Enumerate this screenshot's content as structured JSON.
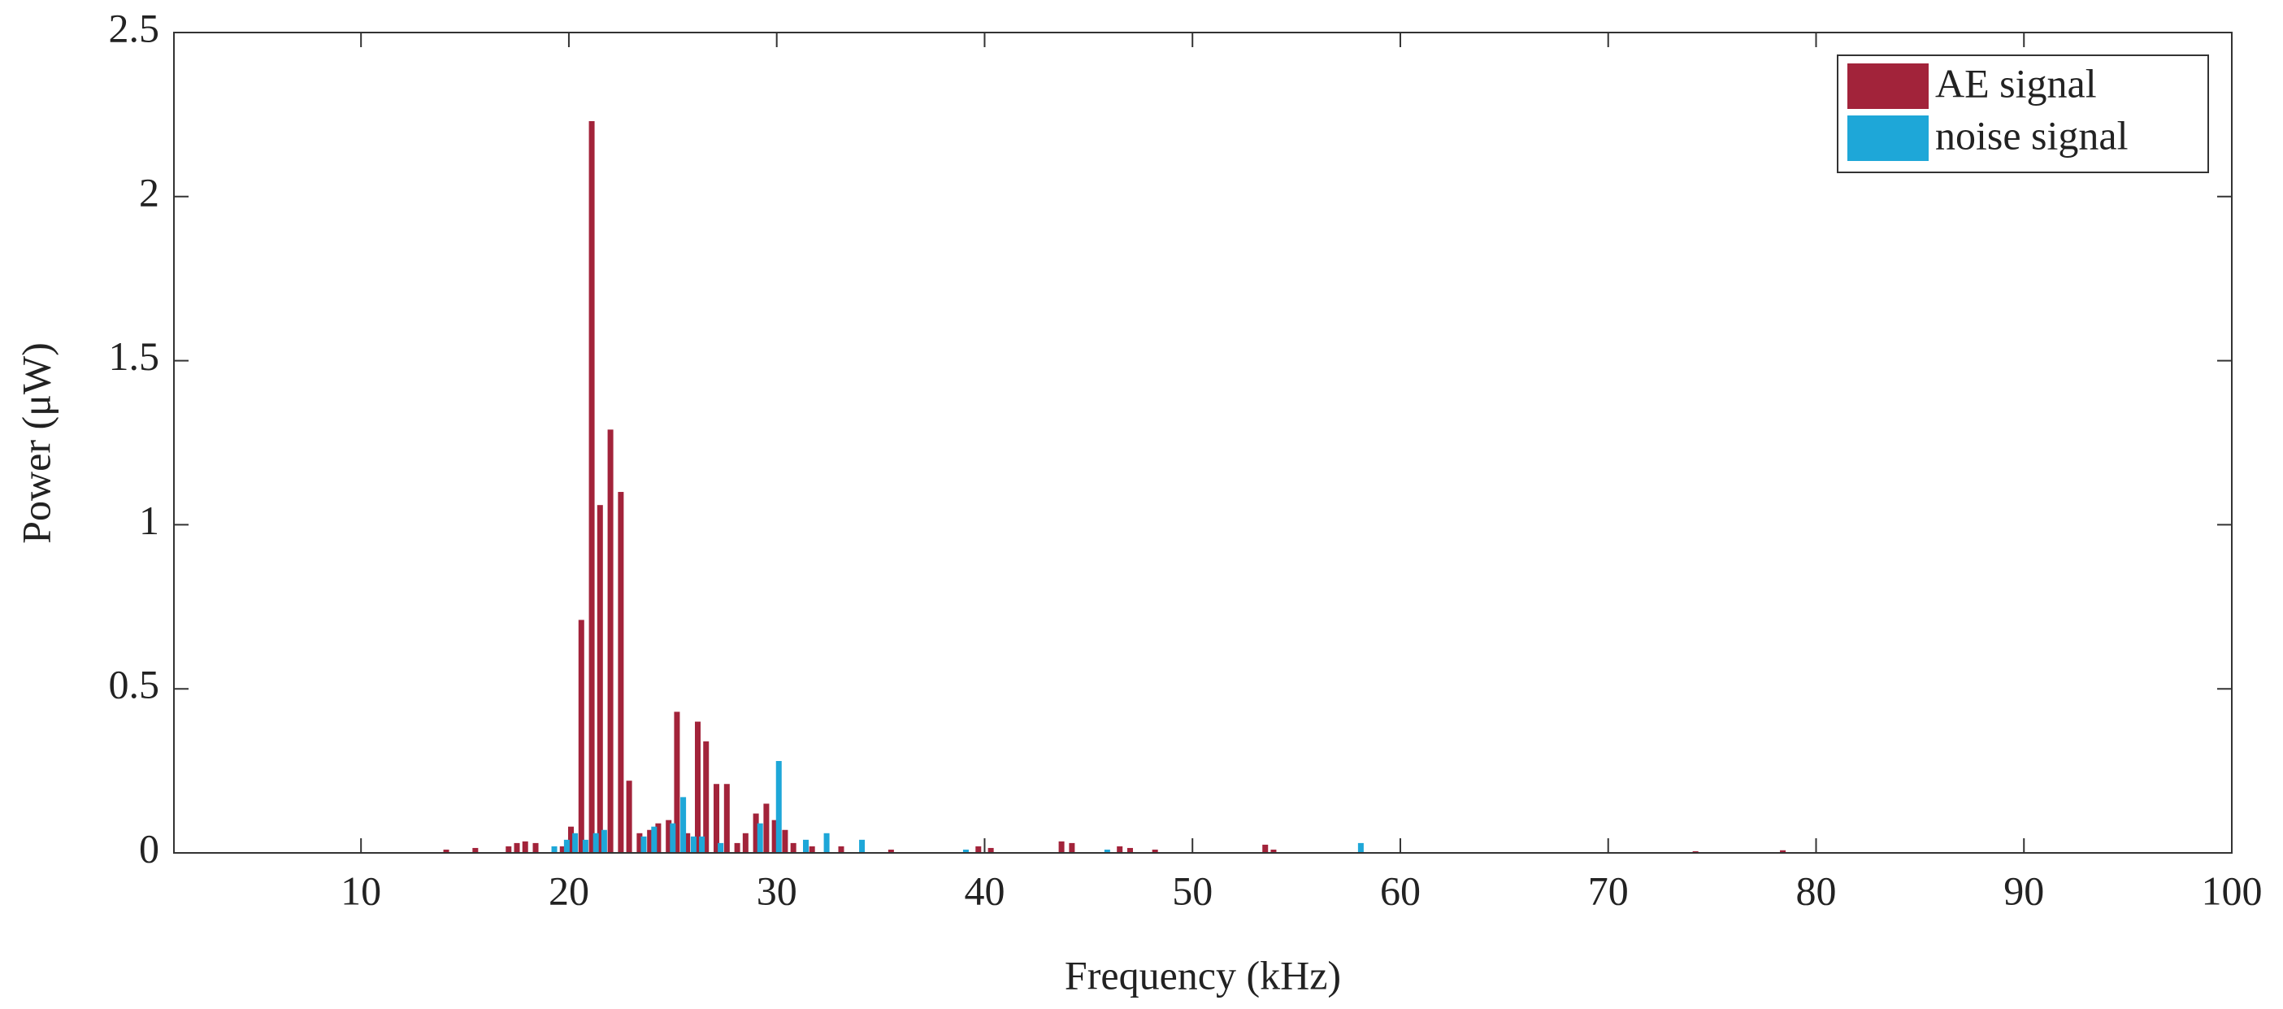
{
  "chart_data": {
    "type": "bar",
    "x_label": "Frequency (kHz)",
    "y_label": "Power (μW)",
    "xlim": [
      1,
      100
    ],
    "xticks": [
      10,
      20,
      30,
      40,
      50,
      60,
      70,
      80,
      90,
      100
    ],
    "ylim": [
      0,
      2.5
    ],
    "yticks": [
      0,
      0.5,
      1,
      1.5,
      2,
      2.5
    ],
    "legend": "top-right",
    "series": [
      {
        "name": "AE signal",
        "color": "#a2233a",
        "x": [
          14.1,
          15.5,
          17.1,
          17.5,
          17.9,
          18.4,
          19.7,
          20.1,
          20.6,
          21.1,
          21.5,
          22.0,
          22.5,
          22.9,
          23.4,
          23.9,
          24.3,
          24.8,
          25.2,
          25.7,
          26.2,
          26.6,
          27.1,
          27.6,
          28.1,
          28.5,
          29.0,
          29.5,
          29.9,
          30.4,
          30.8,
          31.7,
          33.1,
          35.5,
          39.7,
          40.3,
          43.7,
          44.2,
          46.5,
          47.0,
          48.2,
          53.5,
          53.9,
          74.2,
          78.4
        ],
        "values": [
          0.01,
          0.015,
          0.02,
          0.03,
          0.035,
          0.03,
          0.02,
          0.08,
          0.71,
          2.23,
          1.06,
          1.29,
          1.1,
          0.22,
          0.06,
          0.07,
          0.09,
          0.1,
          0.43,
          0.06,
          0.4,
          0.34,
          0.21,
          0.21,
          0.03,
          0.06,
          0.12,
          0.15,
          0.1,
          0.07,
          0.03,
          0.02,
          0.02,
          0.01,
          0.02,
          0.015,
          0.035,
          0.03,
          0.02,
          0.015,
          0.01,
          0.025,
          0.01,
          0.005,
          0.008
        ]
      },
      {
        "name": "noise signal",
        "color": "#1ea7d8",
        "x": [
          19.3,
          19.9,
          20.3,
          20.8,
          21.3,
          21.7,
          23.6,
          24.1,
          25.0,
          25.5,
          26.0,
          26.4,
          27.3,
          29.2,
          30.1,
          31.4,
          32.4,
          34.1,
          39.1,
          45.9,
          58.1
        ],
        "values": [
          0.02,
          0.04,
          0.06,
          0.04,
          0.06,
          0.07,
          0.05,
          0.08,
          0.09,
          0.17,
          0.05,
          0.05,
          0.03,
          0.09,
          0.28,
          0.04,
          0.06,
          0.04,
          0.01,
          0.01,
          0.03
        ]
      }
    ]
  }
}
